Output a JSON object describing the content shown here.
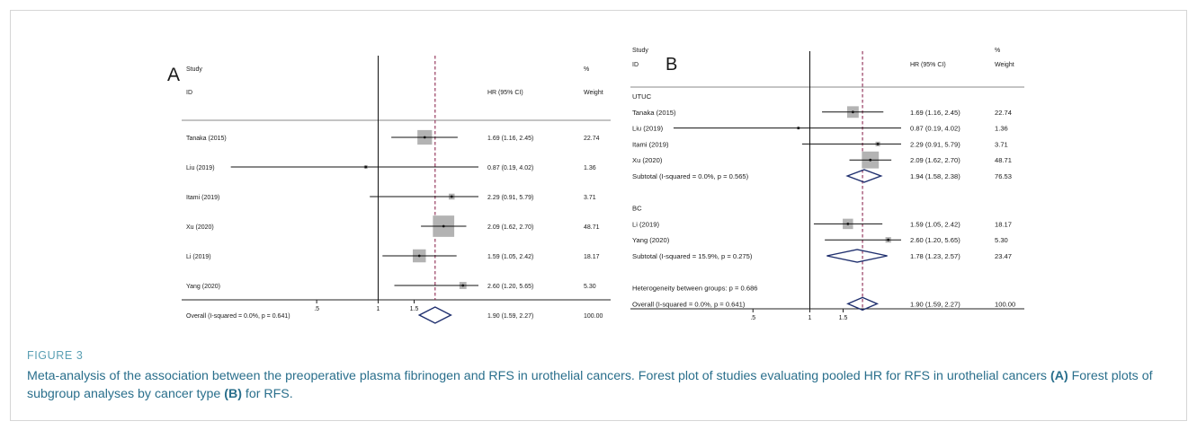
{
  "figure": {
    "label": "FIGURE 3",
    "caption": {
      "part1": "Meta-analysis of the association between the preoperative plasma fibrinogen and RFS in urothelial cancers. Forest plot of studies evaluating pooled HR for RFS in urothelial cancers ",
      "ref_a": "(A)",
      "part2": " Forest plots of subgroup analyses by cancer type ",
      "ref_b": "(B)",
      "part3": " for RFS."
    }
  },
  "colors": {
    "box": "#b3b3b3",
    "diamond": "#1f2f6e",
    "ref_line": "#8e2a52",
    "caption": "#2a6f8c",
    "caption_label": "#5a9fb3"
  },
  "chart_data": [
    {
      "type": "forest",
      "panel_label": "A",
      "header": {
        "study": "Study",
        "id": "ID",
        "hr": "HR (95% CI)",
        "pct": "%",
        "weight": "Weight"
      },
      "x_ticks": [
        {
          "value": 0.5,
          "label": ".5"
        },
        {
          "value": 1,
          "label": "1"
        },
        {
          "value": 1.5,
          "label": "1.5"
        }
      ],
      "null_line": 1,
      "overall_line": 1.9,
      "rows": [
        {
          "kind": "study",
          "label": "Tanaka (2015)",
          "hr": 1.69,
          "lo": 1.16,
          "hi": 2.45,
          "ci_text": "1.69 (1.16, 2.45)",
          "weight": 22.74,
          "weight_text": "22.74"
        },
        {
          "kind": "study",
          "label": "Liu (2019)",
          "hr": 0.87,
          "lo": 0.19,
          "hi": 4.02,
          "ci_text": "0.87 (0.19, 4.02)",
          "weight": 1.36,
          "weight_text": "1.36"
        },
        {
          "kind": "study",
          "label": "Itami (2019)",
          "hr": 2.29,
          "lo": 0.91,
          "hi": 5.79,
          "ci_text": "2.29 (0.91, 5.79)",
          "weight": 3.71,
          "weight_text": "3.71"
        },
        {
          "kind": "study",
          "label": "Xu (2020)",
          "hr": 2.09,
          "lo": 1.62,
          "hi": 2.7,
          "ci_text": "2.09 (1.62, 2.70)",
          "weight": 48.71,
          "weight_text": "48.71"
        },
        {
          "kind": "study",
          "label": "Li (2019)",
          "hr": 1.59,
          "lo": 1.05,
          "hi": 2.42,
          "ci_text": "1.59 (1.05, 2.42)",
          "weight": 18.17,
          "weight_text": "18.17"
        },
        {
          "kind": "study",
          "label": "Yang (2020)",
          "hr": 2.6,
          "lo": 1.2,
          "hi": 5.65,
          "ci_text": "2.60 (1.20, 5.65)",
          "weight": 5.3,
          "weight_text": "5.30"
        },
        {
          "kind": "overall",
          "label": "Overall  (I-squared = 0.0%, p = 0.641)",
          "hr": 1.9,
          "lo": 1.59,
          "hi": 2.27,
          "ci_text": "1.90 (1.59, 2.27)",
          "weight_text": "100.00"
        }
      ]
    },
    {
      "type": "forest",
      "panel_label": "B",
      "header": {
        "study": "Study",
        "id": "ID",
        "hr": "HR (95% CI)",
        "pct": "%",
        "weight": "Weight"
      },
      "x_ticks": [
        {
          "value": 0.5,
          "label": ".5"
        },
        {
          "value": 1,
          "label": "1"
        },
        {
          "value": 1.5,
          "label": "1.5"
        }
      ],
      "null_line": 1,
      "overall_line": 1.9,
      "rows": [
        {
          "kind": "group",
          "label": "UTUC"
        },
        {
          "kind": "study",
          "label": "Tanaka (2015)",
          "hr": 1.69,
          "lo": 1.16,
          "hi": 2.45,
          "ci_text": "1.69 (1.16, 2.45)",
          "weight": 22.74,
          "weight_text": "22.74"
        },
        {
          "kind": "study",
          "label": "Liu (2019)",
          "hr": 0.87,
          "lo": 0.19,
          "hi": 4.02,
          "ci_text": "0.87 (0.19, 4.02)",
          "weight": 1.36,
          "weight_text": "1.36"
        },
        {
          "kind": "study",
          "label": "Itami (2019)",
          "hr": 2.29,
          "lo": 0.91,
          "hi": 5.79,
          "ci_text": "2.29 (0.91, 5.79)",
          "weight": 3.71,
          "weight_text": "3.71"
        },
        {
          "kind": "study",
          "label": "Xu (2020)",
          "hr": 2.09,
          "lo": 1.62,
          "hi": 2.7,
          "ci_text": "2.09 (1.62, 2.70)",
          "weight": 48.71,
          "weight_text": "48.71"
        },
        {
          "kind": "subtotal",
          "label": "Subtotal  (I-squared = 0.0%, p = 0.565)",
          "hr": 1.94,
          "lo": 1.58,
          "hi": 2.38,
          "ci_text": "1.94 (1.58, 2.38)",
          "weight_text": "76.53"
        },
        {
          "kind": "blank"
        },
        {
          "kind": "group",
          "label": "BC"
        },
        {
          "kind": "study",
          "label": "Li (2019)",
          "hr": 1.59,
          "lo": 1.05,
          "hi": 2.42,
          "ci_text": "1.59 (1.05, 2.42)",
          "weight": 18.17,
          "weight_text": "18.17"
        },
        {
          "kind": "study",
          "label": "Yang (2020)",
          "hr": 2.6,
          "lo": 1.2,
          "hi": 5.65,
          "ci_text": "2.60 (1.20, 5.65)",
          "weight": 5.3,
          "weight_text": "5.30"
        },
        {
          "kind": "subtotal",
          "label": "Subtotal  (I-squared = 15.9%, p = 0.275)",
          "hr": 1.78,
          "lo": 1.23,
          "hi": 2.57,
          "ci_text": "1.78 (1.23, 2.57)",
          "weight_text": "23.47"
        },
        {
          "kind": "blank"
        },
        {
          "kind": "note",
          "label": "Heterogeneity between groups: p = 0.686"
        },
        {
          "kind": "overall",
          "label": "Overall  (I-squared = 0.0%, p = 0.641)",
          "hr": 1.9,
          "lo": 1.59,
          "hi": 2.27,
          "ci_text": "1.90 (1.59, 2.27)",
          "weight_text": "100.00"
        }
      ]
    }
  ]
}
